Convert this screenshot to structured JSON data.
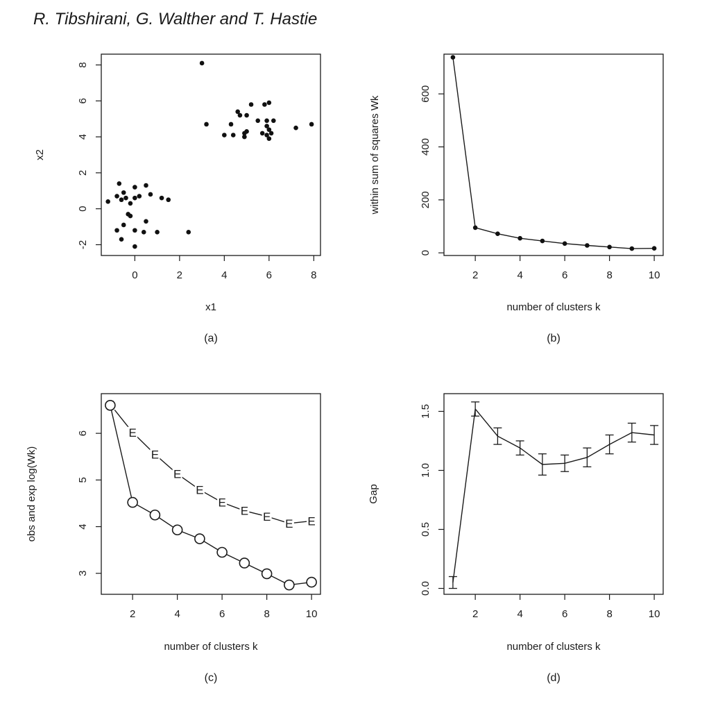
{
  "page": {
    "header": "R. Tibshirani, G. Walther and T. Hastie"
  },
  "chart_data": [
    {
      "panel": "a",
      "caption": "(a)",
      "type": "scatter",
      "title": "",
      "xlabel": "x1",
      "ylabel": "x2",
      "xlim": [
        -1.5,
        8.3
      ],
      "ylim": [
        -2.6,
        8.6
      ],
      "xticks": [
        0,
        2,
        4,
        6,
        8
      ],
      "yticks": [
        -2,
        0,
        2,
        4,
        6,
        8
      ],
      "points": [
        [
          -1.2,
          0.4
        ],
        [
          -0.8,
          0.7
        ],
        [
          -0.7,
          1.4
        ],
        [
          -0.6,
          0.5
        ],
        [
          -0.5,
          0.9
        ],
        [
          -0.4,
          0.6
        ],
        [
          -0.2,
          0.3
        ],
        [
          0.0,
          0.6
        ],
        [
          0.0,
          1.2
        ],
        [
          0.2,
          0.7
        ],
        [
          0.5,
          1.3
        ],
        [
          0.7,
          0.8
        ],
        [
          1.2,
          0.6
        ],
        [
          1.5,
          0.5
        ],
        [
          -0.3,
          -0.3
        ],
        [
          -0.2,
          -0.4
        ],
        [
          -0.5,
          -0.9
        ],
        [
          -0.8,
          -1.2
        ],
        [
          -0.6,
          -1.7
        ],
        [
          0.0,
          -1.2
        ],
        [
          0.4,
          -1.3
        ],
        [
          0.5,
          -0.7
        ],
        [
          1.0,
          -1.3
        ],
        [
          0.0,
          -2.1
        ],
        [
          2.4,
          -1.3
        ],
        [
          3.0,
          8.1
        ],
        [
          3.2,
          4.7
        ],
        [
          4.0,
          4.1
        ],
        [
          4.3,
          4.7
        ],
        [
          4.4,
          4.1
        ],
        [
          4.6,
          5.4
        ],
        [
          4.7,
          5.2
        ],
        [
          4.9,
          4.2
        ],
        [
          4.9,
          4.0
        ],
        [
          5.0,
          4.3
        ],
        [
          5.0,
          5.2
        ],
        [
          5.2,
          5.8
        ],
        [
          5.5,
          4.9
        ],
        [
          5.7,
          4.2
        ],
        [
          5.8,
          5.8
        ],
        [
          5.9,
          4.1
        ],
        [
          5.9,
          4.6
        ],
        [
          5.9,
          4.9
        ],
        [
          6.0,
          5.9
        ],
        [
          6.0,
          3.9
        ],
        [
          6.0,
          4.4
        ],
        [
          6.2,
          4.9
        ],
        [
          6.1,
          4.2
        ],
        [
          7.2,
          4.5
        ],
        [
          7.9,
          4.7
        ]
      ]
    },
    {
      "panel": "b",
      "caption": "(b)",
      "type": "line",
      "title": "",
      "xlabel": "number of clusters k",
      "ylabel": "within sum of squares Wk",
      "xlim": [
        0.6,
        10.4
      ],
      "ylim": [
        -10,
        750
      ],
      "xticks": [
        2,
        4,
        6,
        8,
        10
      ],
      "yticks": [
        0,
        200,
        400,
        600
      ],
      "x": [
        1,
        2,
        3,
        4,
        5,
        6,
        7,
        8,
        9,
        10
      ],
      "y": [
        738,
        95,
        72,
        55,
        45,
        35,
        28,
        22,
        16,
        17
      ]
    },
    {
      "panel": "c",
      "caption": "(c)",
      "type": "line",
      "title": "",
      "xlabel": "number of clusters k",
      "ylabel": "obs and exp log(Wk)",
      "xlim": [
        0.6,
        10.4
      ],
      "ylim": [
        2.55,
        6.85
      ],
      "xticks": [
        2,
        4,
        6,
        8,
        10
      ],
      "yticks": [
        3,
        4,
        5,
        6
      ],
      "x": [
        1,
        2,
        3,
        4,
        5,
        6,
        7,
        8,
        9,
        10
      ],
      "series": [
        {
          "marker": "E",
          "values": [
            6.62,
            6.02,
            5.55,
            5.13,
            4.79,
            4.52,
            4.34,
            4.22,
            4.07,
            4.12
          ]
        },
        {
          "marker": "O",
          "values": [
            6.6,
            4.52,
            4.25,
            3.93,
            3.74,
            3.45,
            3.22,
            2.99,
            2.75,
            2.81
          ]
        }
      ]
    },
    {
      "panel": "d",
      "caption": "(d)",
      "type": "line",
      "title": "",
      "xlabel": "number of clusters k",
      "ylabel": "Gap",
      "xlim": [
        0.6,
        10.4
      ],
      "ylim": [
        -0.05,
        1.65
      ],
      "xticks": [
        2,
        4,
        6,
        8,
        10
      ],
      "yticks": [
        0.0,
        0.5,
        1.0,
        1.5
      ],
      "x": [
        1,
        2,
        3,
        4,
        5,
        6,
        7,
        8,
        9,
        10
      ],
      "y": [
        0.05,
        1.52,
        1.29,
        1.19,
        1.05,
        1.06,
        1.11,
        1.22,
        1.32,
        1.3
      ],
      "err": [
        0.05,
        0.06,
        0.07,
        0.06,
        0.09,
        0.07,
        0.08,
        0.08,
        0.08,
        0.08
      ]
    }
  ]
}
